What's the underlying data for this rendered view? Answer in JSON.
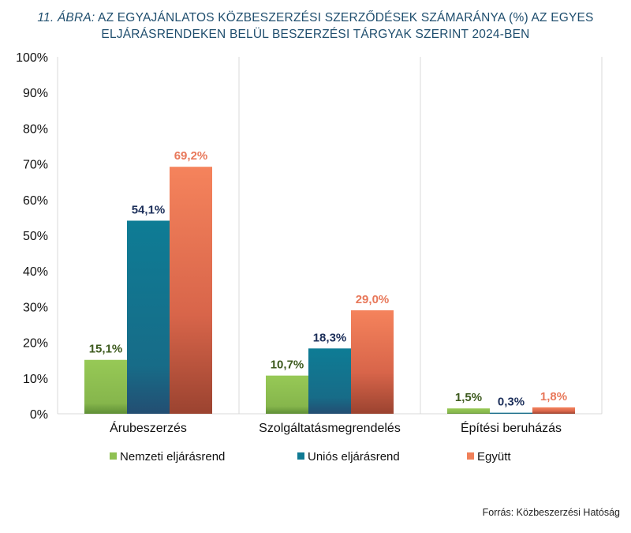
{
  "title": {
    "prefix": "11. ÁBRA:",
    "line1": " AZ EGYAJÁNLATOS KÖZBESZERZÉSI SZERZŐDÉSEK SZÁMARÁNYA (%) AZ EGYES",
    "line2": "ELJÁRÁSRENDEKEN BELÜL BESZERZÉSI TÁRGYAK SZERINT 2024-BEN"
  },
  "source": "Forrás: Közbeszerzési Hatóság",
  "chart_data": {
    "type": "bar",
    "categories": [
      "Árubeszerzés",
      "Szolgáltatásmegrendelés",
      "Építési beruházás"
    ],
    "series": [
      {
        "name": "Nemzeti eljárásrend",
        "values": [
          15.1,
          10.7,
          1.5
        ],
        "labels": [
          "15,1%",
          "10,7%",
          "1,5%"
        ],
        "color": "#8fc152",
        "label_color": "#3d5a1e"
      },
      {
        "name": "Uniós eljárásrend",
        "values": [
          54.1,
          18.3,
          0.3
        ],
        "labels": [
          "54,1%",
          "18,3%",
          "0,3%"
        ],
        "color": "#0f7a93",
        "label_color": "#1c2f5a"
      },
      {
        "name": "Együtt",
        "values": [
          69.2,
          29.0,
          1.8
        ],
        "labels": [
          "69,2%",
          "29,0%",
          "1,8%"
        ],
        "color": "#f08059",
        "label_color": "#e8785a"
      }
    ],
    "ylim": [
      0,
      100
    ],
    "yticks": [
      "0%",
      "10%",
      "20%",
      "30%",
      "40%",
      "50%",
      "60%",
      "70%",
      "80%",
      "90%",
      "100%"
    ],
    "legend_position": "bottom",
    "grid": "vertical category separators"
  }
}
